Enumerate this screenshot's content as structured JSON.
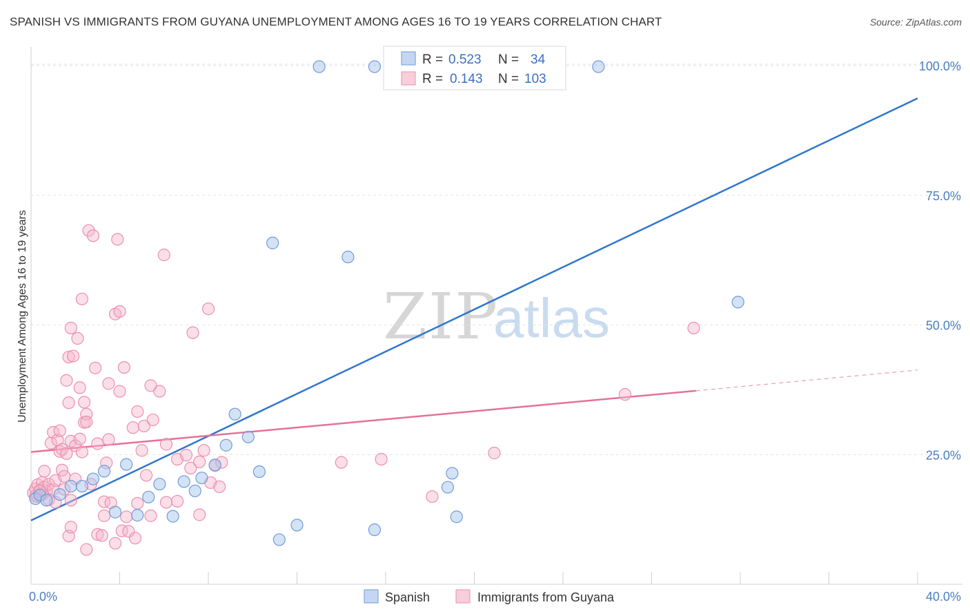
{
  "title": "SPANISH VS IMMIGRANTS FROM GUYANA UNEMPLOYMENT AMONG AGES 16 TO 19 YEARS CORRELATION CHART",
  "source": "Source: ZipAtlas.com",
  "watermark": {
    "part1": "ZIP",
    "part2": "atlas"
  },
  "colors": {
    "spanish_fill": "#a9c6ec",
    "spanish_stroke": "#6e9bd8",
    "spanish_line": "#2f75cf",
    "guyana_fill": "#f5b9cc",
    "guyana_stroke": "#ec8fac",
    "guyana_line": "#e4719a",
    "tick_color": "#4a7fc1"
  },
  "legend": {
    "r_label": "R =",
    "n_label": "N =",
    "spanish": {
      "r": "0.523",
      "n": "34"
    },
    "guyana": {
      "r": "0.143",
      "n": "103"
    }
  },
  "bottom_legend": {
    "spanish": "Spanish",
    "guyana": "Immigrants from Guyana"
  },
  "chart_data": {
    "type": "scatter",
    "title": "SPANISH VS IMMIGRANTS FROM GUYANA UNEMPLOYMENT AMONG AGES 16 TO 19 YEARS CORRELATION CHART",
    "xlabel": "",
    "ylabel": "Unemployment Among Ages 16 to 19 years",
    "xlim": [
      0,
      40
    ],
    "ylim": [
      0,
      102
    ],
    "x_tick_labels": {
      "left": "0.0%",
      "right": "40.0%"
    },
    "y_ticks": [
      {
        "value": 25,
        "label": "25.0%"
      },
      {
        "value": 50,
        "label": "50.0%"
      },
      {
        "value": 75,
        "label": "75.0%"
      },
      {
        "value": 100,
        "label": "100.0%"
      }
    ],
    "grid": true,
    "series": [
      {
        "name": "Spanish",
        "r": 0.523,
        "n": 34,
        "trend": {
          "x": [
            0,
            40
          ],
          "y": [
            12.3,
            93.7
          ]
        },
        "points": [
          [
            0.2,
            16.5
          ],
          [
            0.4,
            17.2
          ],
          [
            0.7,
            16.2
          ],
          [
            1.3,
            17.3
          ],
          [
            1.8,
            18.9
          ],
          [
            2.3,
            18.9
          ],
          [
            2.8,
            20.3
          ],
          [
            3.3,
            21.8
          ],
          [
            3.8,
            13.9
          ],
          [
            4.3,
            23.1
          ],
          [
            4.8,
            13.3
          ],
          [
            5.3,
            16.8
          ],
          [
            5.8,
            19.3
          ],
          [
            6.4,
            13.1
          ],
          [
            6.9,
            19.8
          ],
          [
            7.4,
            18.0
          ],
          [
            7.7,
            20.5
          ],
          [
            8.3,
            23.0
          ],
          [
            8.8,
            26.8
          ],
          [
            9.2,
            32.8
          ],
          [
            9.8,
            28.4
          ],
          [
            10.3,
            21.7
          ],
          [
            10.9,
            65.8
          ],
          [
            11.2,
            8.6
          ],
          [
            12.0,
            11.4
          ],
          [
            13.0,
            99.8
          ],
          [
            14.3,
            63.1
          ],
          [
            15.5,
            99.8
          ],
          [
            15.5,
            10.5
          ],
          [
            18.8,
            18.7
          ],
          [
            19.0,
            21.4
          ],
          [
            19.2,
            13.0
          ],
          [
            25.6,
            99.8
          ],
          [
            31.9,
            54.4
          ]
        ]
      },
      {
        "name": "Immigrants from Guyana",
        "r": 0.143,
        "n": 103,
        "trend": {
          "x": [
            0,
            30
          ],
          "y": [
            25.5,
            37.3
          ]
        },
        "trend_dashed": {
          "x": [
            30,
            40
          ],
          "y": [
            37.3,
            41.3
          ]
        },
        "points": [
          [
            0.1,
            17.6
          ],
          [
            0.2,
            18.4
          ],
          [
            0.3,
            19.2
          ],
          [
            0.3,
            16.9
          ],
          [
            0.4,
            18.1
          ],
          [
            0.5,
            17.3
          ],
          [
            0.5,
            19.6
          ],
          [
            0.6,
            18.7
          ],
          [
            0.6,
            21.8
          ],
          [
            0.7,
            17.9
          ],
          [
            0.8,
            19.3
          ],
          [
            0.8,
            16.3
          ],
          [
            0.9,
            27.2
          ],
          [
            1.0,
            29.3
          ],
          [
            1.0,
            18.3
          ],
          [
            1.1,
            20.0
          ],
          [
            1.1,
            15.8
          ],
          [
            1.2,
            27.8
          ],
          [
            1.3,
            25.6
          ],
          [
            1.3,
            29.6
          ],
          [
            1.4,
            26.0
          ],
          [
            1.4,
            22.0
          ],
          [
            1.5,
            18.3
          ],
          [
            1.5,
            20.8
          ],
          [
            1.6,
            39.3
          ],
          [
            1.6,
            25.2
          ],
          [
            1.7,
            35.0
          ],
          [
            1.7,
            43.8
          ],
          [
            1.7,
            9.3
          ],
          [
            1.8,
            11.0
          ],
          [
            1.8,
            27.6
          ],
          [
            1.8,
            16.2
          ],
          [
            1.8,
            49.4
          ],
          [
            1.9,
            44.0
          ],
          [
            2.0,
            26.7
          ],
          [
            2.0,
            20.3
          ],
          [
            2.1,
            47.4
          ],
          [
            2.2,
            37.9
          ],
          [
            2.2,
            28.0
          ],
          [
            2.3,
            25.5
          ],
          [
            2.3,
            55.0
          ],
          [
            2.4,
            31.2
          ],
          [
            2.4,
            35.1
          ],
          [
            2.5,
            32.8
          ],
          [
            2.5,
            31.3
          ],
          [
            2.5,
            6.7
          ],
          [
            2.6,
            68.2
          ],
          [
            2.7,
            19.3
          ],
          [
            2.8,
            67.2
          ],
          [
            2.9,
            41.7
          ],
          [
            3.0,
            27.1
          ],
          [
            3.0,
            9.6
          ],
          [
            3.2,
            9.4
          ],
          [
            3.3,
            13.2
          ],
          [
            3.3,
            15.9
          ],
          [
            3.4,
            23.4
          ],
          [
            3.5,
            27.9
          ],
          [
            3.5,
            38.7
          ],
          [
            3.6,
            15.7
          ],
          [
            3.8,
            7.9
          ],
          [
            3.8,
            52.1
          ],
          [
            3.9,
            66.5
          ],
          [
            4.0,
            52.6
          ],
          [
            4.0,
            37.2
          ],
          [
            4.1,
            10.3
          ],
          [
            4.2,
            41.8
          ],
          [
            4.3,
            13.0
          ],
          [
            4.4,
            10.2
          ],
          [
            4.6,
            30.2
          ],
          [
            4.7,
            8.9
          ],
          [
            4.8,
            15.6
          ],
          [
            4.8,
            33.3
          ],
          [
            5.0,
            25.8
          ],
          [
            5.1,
            30.5
          ],
          [
            5.2,
            21.0
          ],
          [
            5.4,
            13.2
          ],
          [
            5.4,
            38.3
          ],
          [
            5.5,
            31.7
          ],
          [
            5.8,
            37.2
          ],
          [
            6.0,
            63.5
          ],
          [
            6.1,
            27.0
          ],
          [
            6.1,
            15.8
          ],
          [
            6.6,
            24.1
          ],
          [
            6.6,
            16.0
          ],
          [
            7.0,
            24.9
          ],
          [
            7.2,
            22.4
          ],
          [
            7.3,
            48.5
          ],
          [
            7.6,
            13.4
          ],
          [
            7.6,
            23.6
          ],
          [
            7.8,
            25.8
          ],
          [
            8.0,
            53.1
          ],
          [
            8.1,
            19.6
          ],
          [
            8.3,
            22.9
          ],
          [
            8.5,
            18.8
          ],
          [
            8.6,
            23.5
          ],
          [
            14.0,
            23.5
          ],
          [
            15.8,
            24.1
          ],
          [
            18.1,
            16.9
          ],
          [
            20.9,
            25.3
          ],
          [
            26.8,
            36.6
          ],
          [
            29.9,
            49.4
          ],
          [
            0.2,
            17.0
          ],
          [
            0.4,
            18.0
          ]
        ]
      }
    ]
  }
}
